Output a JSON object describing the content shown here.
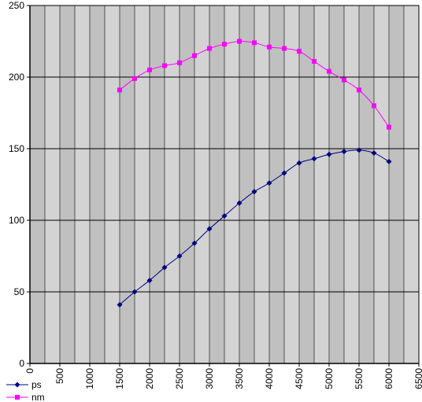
{
  "chart_data": {
    "type": "line",
    "title": "",
    "xlabel": "",
    "ylabel": "",
    "xlim": [
      0,
      6500
    ],
    "ylim": [
      0,
      250
    ],
    "x_ticks": [
      "0",
      "500",
      "1000",
      "1500",
      "2000",
      "2500",
      "3000",
      "3500",
      "4000",
      "4500",
      "5000",
      "5500",
      "6000",
      "6500"
    ],
    "y_ticks": [
      "0",
      "50",
      "100",
      "150",
      "200",
      "250"
    ],
    "grid": "on",
    "legend_position": "bottom-left",
    "x": [
      1500,
      1750,
      2000,
      2250,
      2500,
      2750,
      3000,
      3250,
      3500,
      3750,
      4000,
      4250,
      4500,
      4750,
      5000,
      5250,
      5500,
      5750,
      6000
    ],
    "series": [
      {
        "name": "ps",
        "color": "#000080",
        "marker": "diamond",
        "values": [
          41,
          50,
          58,
          67,
          75,
          84,
          94,
          103,
          112,
          120,
          126,
          133,
          140,
          143,
          146,
          148,
          149,
          147,
          141
        ]
      },
      {
        "name": "nm",
        "color": "#ff00ff",
        "marker": "square",
        "values": [
          191,
          199,
          205,
          208,
          210,
          215,
          220,
          223,
          225,
          224,
          221,
          220,
          218,
          211,
          204,
          198,
          191,
          180,
          165
        ]
      }
    ],
    "plot_colors": {
      "band_dark": "#c0c0c0",
      "band_light": "#d3d3d3",
      "grid": "#000000"
    }
  }
}
